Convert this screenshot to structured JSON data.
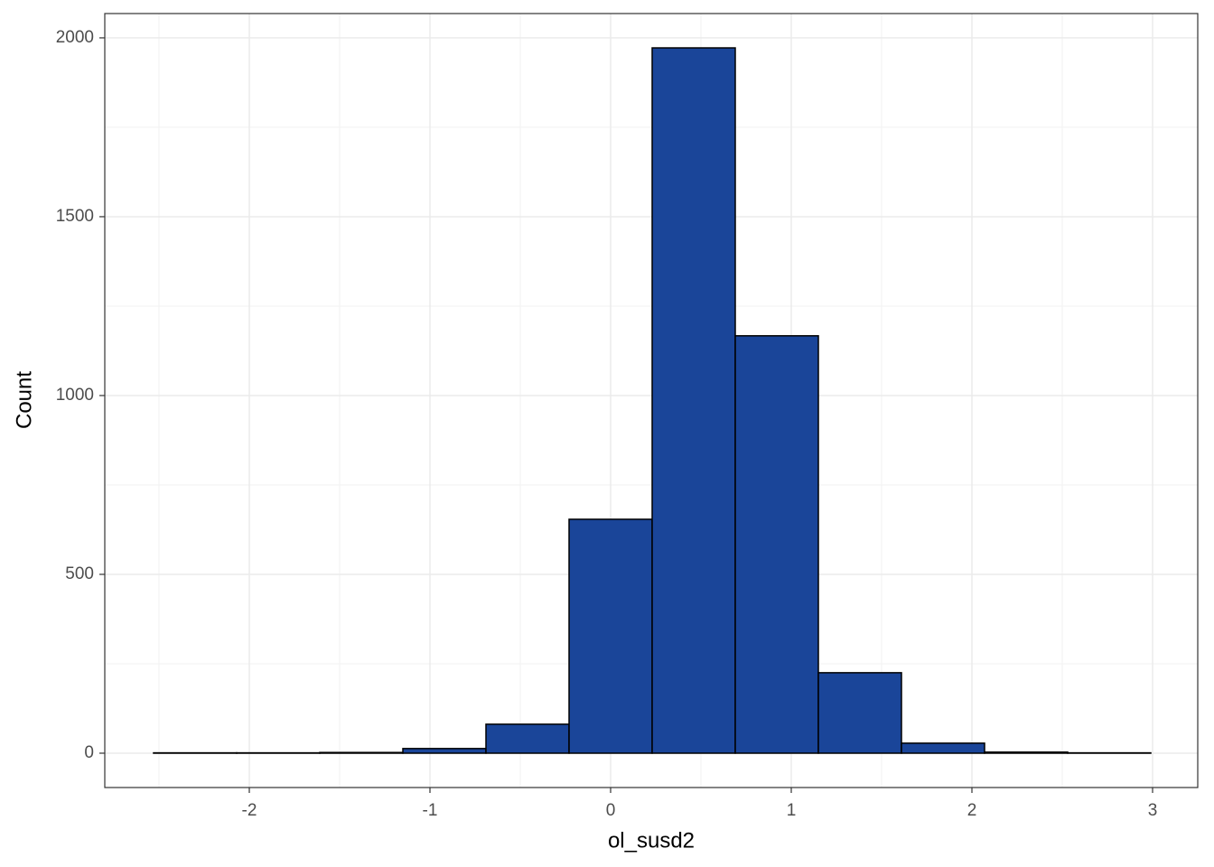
{
  "chart_data": {
    "type": "histogram",
    "x_label": "ol_susd2",
    "y_label": "Count",
    "bins": [
      -2.53,
      -2.07,
      -1.61,
      -1.15,
      -0.69,
      -0.23,
      0.23,
      0.69,
      1.15,
      1.61,
      2.07,
      2.53,
      2.99
    ],
    "values": [
      1,
      1,
      2,
      13,
      81,
      654,
      1972,
      1167,
      225,
      28,
      3,
      1
    ],
    "color": "#1a4599",
    "edgecolor": "#000000",
    "xlim": [
      -2.8,
      3.25
    ],
    "xticks": [
      -2,
      -1,
      0,
      1,
      2,
      3
    ],
    "ylim": [
      -96,
      2068
    ],
    "yticks": [
      0,
      500,
      1000,
      1500,
      2000
    ],
    "xminor": [
      -2.5,
      -1.5,
      -0.5,
      0.5,
      1.5,
      2.5
    ],
    "yminor": [
      250,
      750,
      1250,
      1750
    ],
    "grid": true
  }
}
